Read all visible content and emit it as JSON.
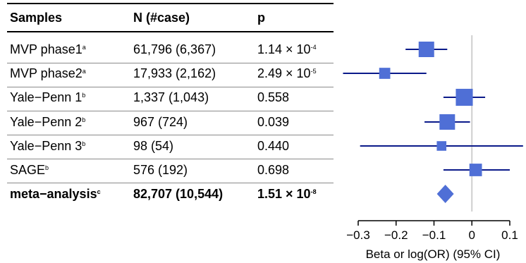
{
  "columns": {
    "samples": "Samples",
    "n": "N (#case)",
    "p": "p"
  },
  "rows": [
    {
      "sample": "MVP phase1",
      "sup": "a",
      "n": "61,796 (6,367)",
      "p_base": "1.14 × 10",
      "p_exp": "-4",
      "bold": false
    },
    {
      "sample": "MVP phase2",
      "sup": "a",
      "n": "17,933 (2,162)",
      "p_base": "2.49 × 10",
      "p_exp": "-5",
      "bold": false
    },
    {
      "sample": "Yale−Penn 1",
      "sup": "b",
      "n": "1,337 (1,043)",
      "p_base": "0.558",
      "p_exp": "",
      "bold": false
    },
    {
      "sample": "Yale−Penn 2",
      "sup": "b",
      "n": "967 (724)",
      "p_base": "0.039",
      "p_exp": "",
      "bold": false
    },
    {
      "sample": "Yale−Penn 3",
      "sup": "b",
      "n": "98 (54)",
      "p_base": "0.440",
      "p_exp": "",
      "bold": false
    },
    {
      "sample": "SAGE",
      "sup": "b",
      "n": "576 (192)",
      "p_base": "0.698",
      "p_exp": "",
      "bold": false
    },
    {
      "sample": "meta−analysis",
      "sup": "c",
      "n": "82,707 (10,544)",
      "p_base": "1.51 × 10",
      "p_exp": "-8",
      "bold": true
    }
  ],
  "chart_data": {
    "type": "forest",
    "xlabel": "Beta or log(OR) (95% CI)",
    "xlim": [
      -0.34,
      0.14
    ],
    "ticks": [
      -0.3,
      -0.2,
      -0.1,
      0,
      0.1
    ],
    "tick_labels": [
      "−0.3",
      "−0.2",
      "−0.1",
      "0",
      "0.1"
    ],
    "reference_line": 0,
    "estimates": [
      {
        "est": -0.12,
        "lo": -0.175,
        "hi": -0.065,
        "weight": 1.0
      },
      {
        "est": -0.23,
        "lo": -0.34,
        "hi": -0.12,
        "weight": 0.55
      },
      {
        "est": -0.02,
        "lo": -0.075,
        "hi": 0.035,
        "weight": 1.15
      },
      {
        "est": -0.065,
        "lo": -0.125,
        "hi": -0.005,
        "weight": 1.0
      },
      {
        "est": -0.08,
        "lo": -0.295,
        "hi": 0.135,
        "weight": 0.4
      },
      {
        "est": 0.01,
        "lo": -0.075,
        "hi": 0.1,
        "weight": 0.7
      }
    ],
    "summary": {
      "est": -0.07,
      "lo": -0.085,
      "hi": -0.055
    },
    "colors": {
      "box": "#4f6fd6",
      "ci": "#0b1a8a",
      "ref": "#cfcfcf"
    }
  }
}
